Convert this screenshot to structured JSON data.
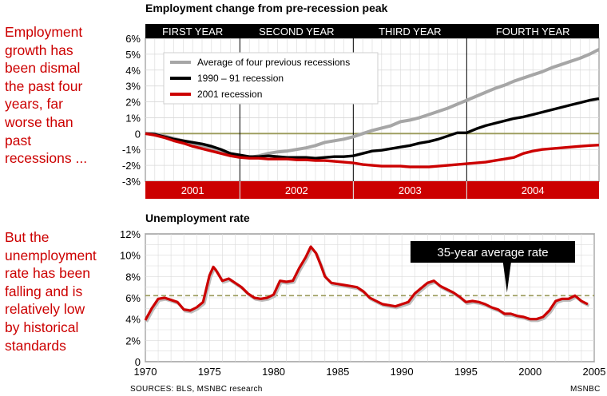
{
  "side_text": {
    "top": "Employment\ngrowth has\nbeen dismal\nthe past four\nyears, far\nworse than\npast\nrecessions ...",
    "bottom": "But the\nunemployment\nrate has been\nfalling and is\nrelatively low\nby historical\nstandards"
  },
  "footer": {
    "sources": "SOURCES: BLS, MSNBC research",
    "credit": "MSNBC"
  },
  "colors": {
    "red": "#cc0000",
    "black": "#000000",
    "gray": "#a6a6a6",
    "olive": "#9a9a5a"
  },
  "chart_data": [
    {
      "type": "line",
      "title": "Employment change from pre-recession peak",
      "ylabel": "",
      "ylim": [
        -3,
        6
      ],
      "y_ticks": [
        "6%",
        "5%",
        "4%",
        "3%",
        "2%",
        "1%",
        "0",
        "-1%",
        "-2%",
        "-3%"
      ],
      "y_tick_values": [
        6,
        5,
        4,
        3,
        2,
        1,
        0,
        -1,
        -2,
        -3
      ],
      "xlim": [
        0,
        48
      ],
      "x_unit": "months from pre-recession peak",
      "top_bands": [
        "FIRST YEAR",
        "SECOND YEAR",
        "THIRD YEAR",
        "FOURTH YEAR"
      ],
      "bottom_bands": [
        "2001",
        "2002",
        "2003",
        "2004"
      ],
      "band_boundaries": [
        0,
        10,
        22,
        34,
        48
      ],
      "legend": [
        "Average of four previous recessions",
        "1990 – 91 recession",
        "2001 recession"
      ],
      "series": [
        {
          "name": "Average of four previous recessions",
          "color": "#a6a6a6",
          "x": [
            0,
            1,
            2,
            3,
            4,
            5,
            6,
            7,
            8,
            9,
            10,
            11,
            12,
            13,
            14,
            15,
            16,
            17,
            18,
            19,
            20,
            21,
            22,
            23,
            24,
            25,
            26,
            27,
            28,
            29,
            30,
            31,
            32,
            33,
            34,
            35,
            36,
            37,
            38,
            39,
            40,
            41,
            42,
            43,
            44,
            45,
            46,
            47,
            48
          ],
          "y": [
            0.0,
            0.0,
            -0.15,
            -0.3,
            -0.45,
            -0.6,
            -0.75,
            -0.9,
            -1.1,
            -1.3,
            -1.45,
            -1.5,
            -1.4,
            -1.25,
            -1.15,
            -1.1,
            -1.0,
            -0.9,
            -0.75,
            -0.55,
            -0.45,
            -0.35,
            -0.2,
            0.0,
            0.2,
            0.35,
            0.5,
            0.75,
            0.85,
            1.0,
            1.2,
            1.4,
            1.6,
            1.85,
            2.1,
            2.35,
            2.6,
            2.85,
            3.05,
            3.3,
            3.5,
            3.7,
            3.9,
            4.15,
            4.35,
            4.55,
            4.75,
            5.0,
            5.3
          ]
        },
        {
          "name": "1990 – 91 recession",
          "color": "#000000",
          "x": [
            0,
            1,
            2,
            3,
            4,
            5,
            6,
            7,
            8,
            9,
            10,
            11,
            12,
            13,
            14,
            15,
            16,
            17,
            18,
            19,
            20,
            21,
            22,
            23,
            24,
            25,
            26,
            27,
            28,
            29,
            30,
            31,
            32,
            33,
            34,
            35,
            36,
            37,
            38,
            39,
            40,
            41,
            42,
            43,
            44,
            45,
            46,
            47,
            48
          ],
          "y": [
            0.0,
            -0.05,
            -0.2,
            -0.35,
            -0.45,
            -0.55,
            -0.65,
            -0.8,
            -1.0,
            -1.25,
            -1.35,
            -1.45,
            -1.45,
            -1.4,
            -1.45,
            -1.5,
            -1.5,
            -1.5,
            -1.55,
            -1.5,
            -1.45,
            -1.45,
            -1.4,
            -1.25,
            -1.1,
            -1.05,
            -0.95,
            -0.85,
            -0.75,
            -0.6,
            -0.5,
            -0.35,
            -0.15,
            0.05,
            0.05,
            0.3,
            0.5,
            0.65,
            0.8,
            0.95,
            1.05,
            1.2,
            1.35,
            1.5,
            1.65,
            1.8,
            1.95,
            2.1,
            2.2
          ]
        },
        {
          "name": "2001 recession",
          "color": "#cc0000",
          "x": [
            0,
            1,
            2,
            3,
            4,
            5,
            6,
            7,
            8,
            9,
            10,
            11,
            12,
            13,
            14,
            15,
            16,
            17,
            18,
            19,
            20,
            21,
            22,
            23,
            24,
            25,
            26,
            27,
            28,
            29,
            30,
            31,
            32,
            33,
            34,
            35,
            36,
            37,
            38,
            39,
            40,
            41,
            42,
            43,
            44,
            45,
            46,
            47,
            48
          ],
          "y": [
            0.0,
            -0.1,
            -0.25,
            -0.45,
            -0.6,
            -0.8,
            -0.95,
            -1.1,
            -1.25,
            -1.4,
            -1.5,
            -1.55,
            -1.55,
            -1.6,
            -1.6,
            -1.6,
            -1.65,
            -1.65,
            -1.7,
            -1.7,
            -1.75,
            -1.8,
            -1.85,
            -1.95,
            -2.0,
            -2.05,
            -2.05,
            -2.05,
            -2.1,
            -2.1,
            -2.1,
            -2.05,
            -2.0,
            -1.95,
            -1.9,
            -1.85,
            -1.8,
            -1.7,
            -1.6,
            -1.5,
            -1.25,
            -1.1,
            -1.0,
            -0.95,
            -0.9,
            -0.85,
            -0.8,
            -0.75,
            -0.72
          ]
        }
      ]
    },
    {
      "type": "line",
      "title": "Unemployment rate",
      "ylabel": "",
      "ylim": [
        0,
        12
      ],
      "y_ticks": [
        "12%",
        "10%",
        "8%",
        "6%",
        "4%",
        "2%",
        "0"
      ],
      "y_tick_values": [
        12,
        10,
        8,
        6,
        4,
        2,
        0
      ],
      "xlim": [
        1970,
        2005
      ],
      "x_ticks": [
        "1970",
        "1975",
        "1980",
        "1985",
        "1990",
        "1995",
        "2000",
        "2005"
      ],
      "x_tick_values": [
        1970,
        1975,
        1980,
        1985,
        1990,
        1995,
        2000,
        2005
      ],
      "reference_line": {
        "label": "35-year average rate",
        "value": 6.2
      },
      "series": [
        {
          "name": "Unemployment rate",
          "color": "#cc0000",
          "x": [
            1970.0,
            1970.5,
            1971.0,
            1971.5,
            1972.0,
            1972.5,
            1973.0,
            1973.5,
            1974.0,
            1974.5,
            1975.0,
            1975.3,
            1975.5,
            1976.0,
            1976.5,
            1977.0,
            1977.5,
            1978.0,
            1978.5,
            1979.0,
            1979.5,
            1980.0,
            1980.5,
            1981.0,
            1981.5,
            1982.0,
            1982.5,
            1982.9,
            1983.3,
            1983.7,
            1984.0,
            1984.5,
            1985.0,
            1985.5,
            1986.0,
            1986.5,
            1987.0,
            1987.5,
            1988.0,
            1988.5,
            1989.0,
            1989.5,
            1990.0,
            1990.5,
            1991.0,
            1991.5,
            1992.0,
            1992.5,
            1993.0,
            1993.5,
            1994.0,
            1994.5,
            1995.0,
            1995.5,
            1996.0,
            1996.5,
            1997.0,
            1997.5,
            1998.0,
            1998.5,
            1999.0,
            1999.5,
            2000.0,
            2000.5,
            2001.0,
            2001.5,
            2002.0,
            2002.5,
            2003.0,
            2003.5,
            2004.0,
            2004.5
          ],
          "y": [
            3.9,
            5.0,
            5.9,
            6.0,
            5.8,
            5.6,
            4.9,
            4.8,
            5.1,
            5.6,
            8.1,
            8.9,
            8.6,
            7.6,
            7.8,
            7.4,
            7.0,
            6.4,
            6.0,
            5.9,
            6.0,
            6.3,
            7.6,
            7.5,
            7.6,
            8.8,
            9.8,
            10.8,
            10.2,
            9.0,
            8.0,
            7.4,
            7.3,
            7.2,
            7.1,
            7.0,
            6.6,
            6.0,
            5.7,
            5.4,
            5.3,
            5.2,
            5.4,
            5.6,
            6.4,
            6.9,
            7.4,
            7.6,
            7.1,
            6.8,
            6.5,
            6.1,
            5.6,
            5.7,
            5.6,
            5.4,
            5.1,
            4.9,
            4.5,
            4.5,
            4.3,
            4.2,
            4.0,
            4.0,
            4.2,
            4.8,
            5.7,
            5.9,
            5.9,
            6.2,
            5.7,
            5.4
          ]
        }
      ]
    }
  ]
}
